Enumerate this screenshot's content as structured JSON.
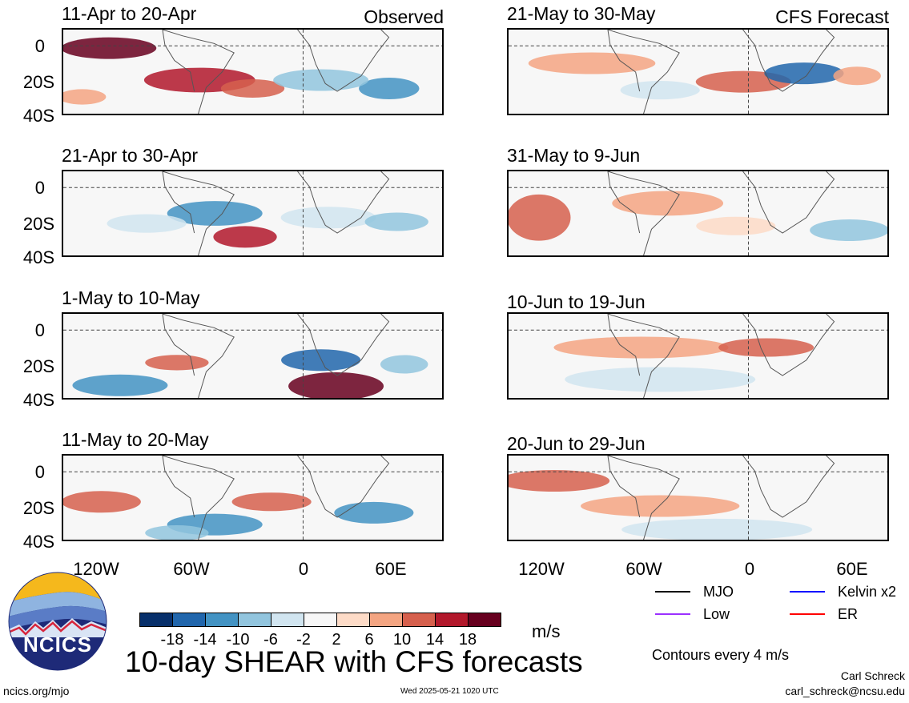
{
  "header": {
    "observed_label": "Observed",
    "forecast_label": "CFS Forecast"
  },
  "panels_left": [
    {
      "title": "11-Apr to 20-Apr"
    },
    {
      "title": "21-Apr to 30-Apr"
    },
    {
      "title": "1-May to 10-May"
    },
    {
      "title": "11-May to 20-May"
    }
  ],
  "panels_right": [
    {
      "title": "21-May to 30-May"
    },
    {
      "title": "31-May to 9-Jun"
    },
    {
      "title": "10-Jun to 19-Jun"
    },
    {
      "title": "20-Jun to 29-Jun"
    }
  ],
  "axes": {
    "y_ticks": [
      "0",
      "20S",
      "40S"
    ],
    "x_ticks": [
      "120W",
      "60W",
      "0",
      "60E"
    ]
  },
  "colorbar": {
    "colors": [
      "#08306b",
      "#2166ac",
      "#4393c3",
      "#92c5de",
      "#d1e5f0",
      "#f7f7f7",
      "#fddbc7",
      "#f4a582",
      "#d6604d",
      "#b2182b",
      "#67001f"
    ],
    "labels": [
      "-18",
      "-14",
      "-10",
      "-6",
      "-2",
      "2",
      "6",
      "10",
      "14",
      "18"
    ],
    "units": "m/s"
  },
  "legend": {
    "items": [
      {
        "label": "MJO",
        "color": "#000000"
      },
      {
        "label": "Kelvin x2",
        "color": "#0000ff"
      },
      {
        "label": "Low",
        "color": "#9b30ff"
      },
      {
        "label": "ER",
        "color": "#ff0000"
      }
    ],
    "contour_note": "Contours every 4 m/s"
  },
  "footer": {
    "main_title": "10-day SHEAR with CFS forecasts",
    "logo_text": "NCICS",
    "site": "ncics.org/mjo",
    "timestamp": "Wed 2025-05-21 1020 UTC",
    "author": "Carl Schreck",
    "email": "carl_schreck@ncsu.edu"
  },
  "chart_data": {
    "type": "heatmap",
    "title": "10-day SHEAR with CFS forecasts",
    "units": "m/s",
    "contour_interval": 4,
    "x_ticks": [
      "120W",
      "60W",
      "0",
      "60E"
    ],
    "y_ticks": [
      "0",
      "20S",
      "40S"
    ],
    "panels": [
      {
        "title": "11-Apr to 20-Apr",
        "group": "Observed"
      },
      {
        "title": "21-Apr to 30-Apr",
        "group": "Observed"
      },
      {
        "title": "1-May to 10-May",
        "group": "Observed"
      },
      {
        "title": "11-May to 20-May",
        "group": "Observed"
      },
      {
        "title": "21-May to 30-May",
        "group": "CFS Forecast"
      },
      {
        "title": "31-May to 9-Jun",
        "group": "CFS Forecast"
      },
      {
        "title": "10-Jun to 19-Jun",
        "group": "CFS Forecast"
      },
      {
        "title": "20-Jun to 29-Jun",
        "group": "CFS Forecast"
      }
    ]
  }
}
